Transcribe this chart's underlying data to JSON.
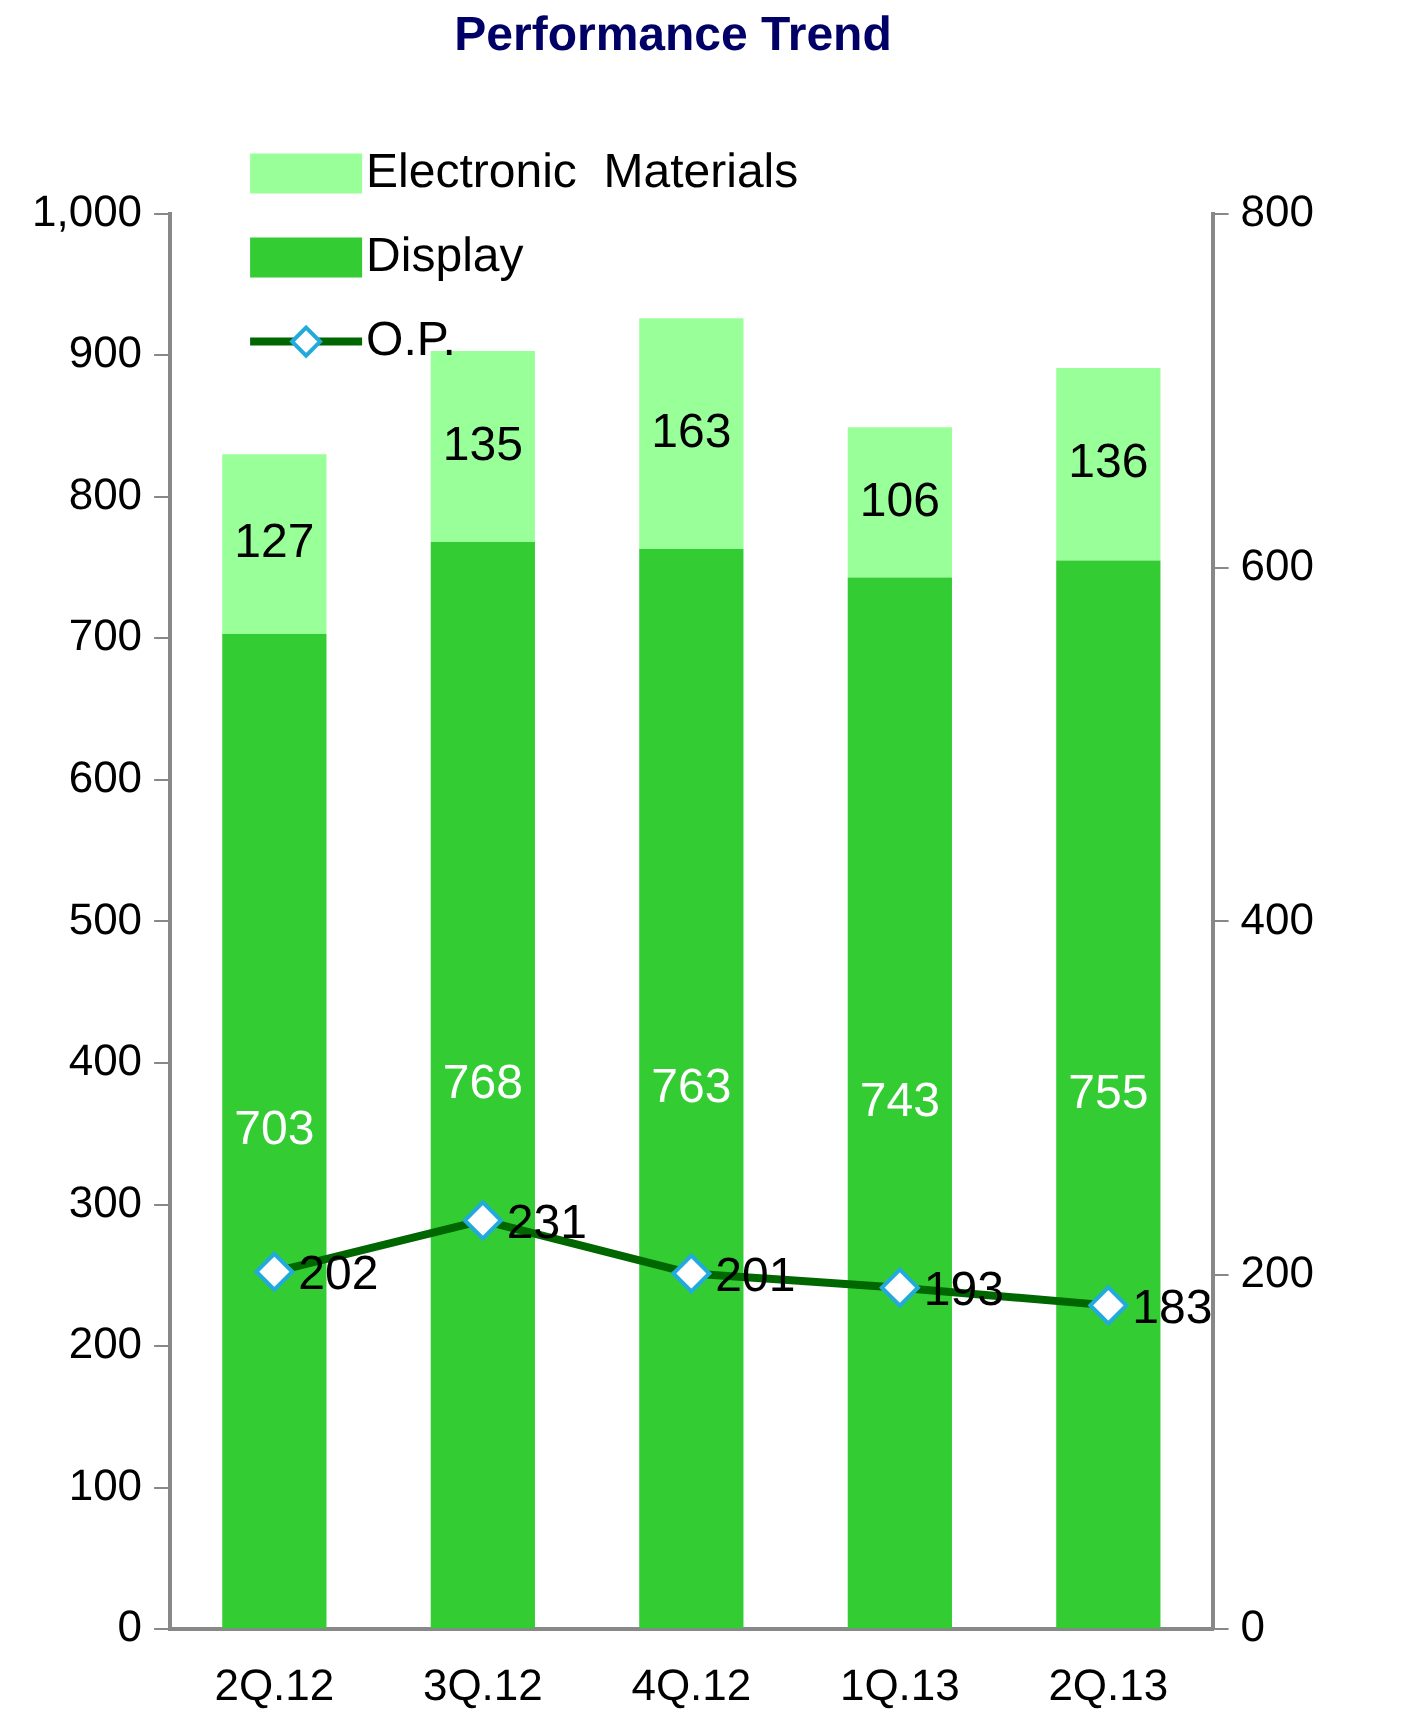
{
  "chart_data": {
    "type": "bar",
    "title": "Performance Trend",
    "stacked": true,
    "categories": [
      "2Q.12",
      "3Q.12",
      "4Q.12",
      "1Q.13",
      "2Q.13"
    ],
    "series": [
      {
        "name": "Display",
        "color": "#33cc33",
        "values": [
          703,
          768,
          763,
          743,
          755
        ]
      },
      {
        "name": "Electronic  Materials",
        "color": "#99ff99",
        "values": [
          127,
          135,
          163,
          106,
          136
        ]
      },
      {
        "name": "O.P.",
        "type": "line",
        "axis": "y2",
        "color": "#006600",
        "marker": "diamond",
        "values": [
          202,
          231,
          201,
          193,
          183
        ]
      }
    ],
    "ylim": [
      0,
      1000
    ],
    "yticks": [
      0,
      100,
      200,
      300,
      400,
      500,
      600,
      700,
      800,
      900,
      {
        "value": 1000,
        "label": "1,000"
      }
    ],
    "y2lim": [
      0,
      800
    ],
    "y2ticks": [
      0,
      200,
      400,
      600,
      800
    ],
    "grid": false,
    "legend": "top left",
    "data_labels": true
  }
}
